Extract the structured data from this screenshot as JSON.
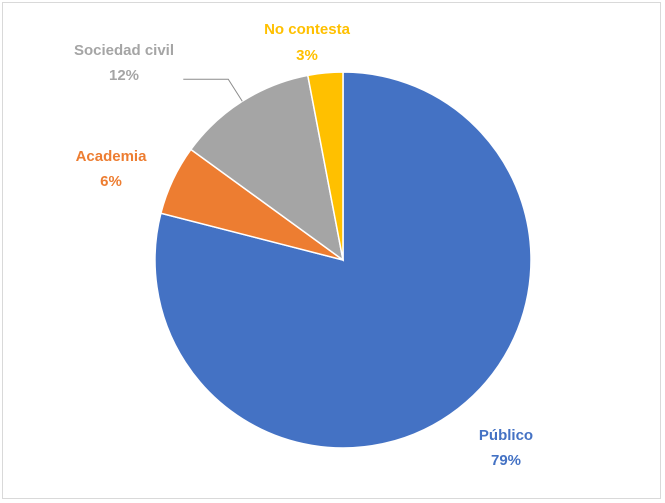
{
  "chart_data": {
    "type": "pie",
    "title": "",
    "legend": "none",
    "slices": [
      {
        "label": "Público",
        "value": 79,
        "value_label": "79%",
        "color": "#4472C4"
      },
      {
        "label": "Academia",
        "value": 6,
        "value_label": "6%",
        "color": "#ED7D31"
      },
      {
        "label": "Sociedad civil",
        "value": 12,
        "value_label": "12%",
        "color": "#A5A5A5"
      },
      {
        "label": "No contesta",
        "value": 3,
        "value_label": "3%",
        "color": "#FFC000"
      }
    ],
    "label_colors": {
      "Público": "#4472C4",
      "Academia": "#ED7D31",
      "Sociedad civil": "#A5A5A5",
      "No contesta": "#FFC000"
    }
  }
}
